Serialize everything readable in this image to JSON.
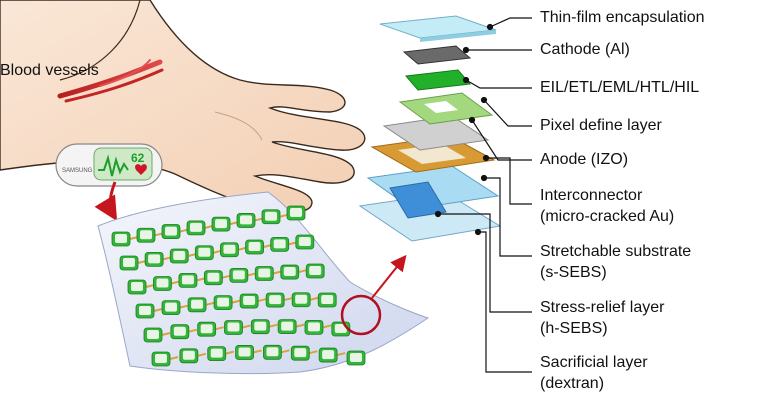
{
  "anatomy": {
    "blood_vessels_label": "Blood vessels"
  },
  "device": {
    "brand": "SAMSUNG",
    "heart_rate": "62"
  },
  "layers": [
    {
      "id": "encapsulation",
      "line1": "Thin-film encapsulation",
      "line2": "",
      "color": "#bfe6f2"
    },
    {
      "id": "cathode",
      "line1": "Cathode (Al)",
      "line2": "",
      "color": "#707070"
    },
    {
      "id": "eil",
      "line1": "EIL/ETL/EML/HTL/HIL",
      "line2": "",
      "color": "#2fb52f"
    },
    {
      "id": "pdl",
      "line1": "Pixel define layer",
      "line2": "",
      "color": "#a9d98a"
    },
    {
      "id": "anode",
      "line1": "Anode (IZO)",
      "line2": "",
      "color": "#c9c9c9"
    },
    {
      "id": "interconnector",
      "line1": "Interconnector",
      "line2": "(micro-cracked Au)",
      "color": "#d9a23a"
    },
    {
      "id": "substrate",
      "line1": "Stretchable substrate",
      "line2": "(s-SEBS)",
      "color": "#8ed3ee"
    },
    {
      "id": "stress_relief",
      "line1": "Stress-relief layer",
      "line2": "(h-SEBS)",
      "color": "#3f8fd8"
    },
    {
      "id": "sacrificial",
      "line1": "Sacrificial layer",
      "line2": "(dextran)",
      "color": "#bfe4f6"
    }
  ]
}
